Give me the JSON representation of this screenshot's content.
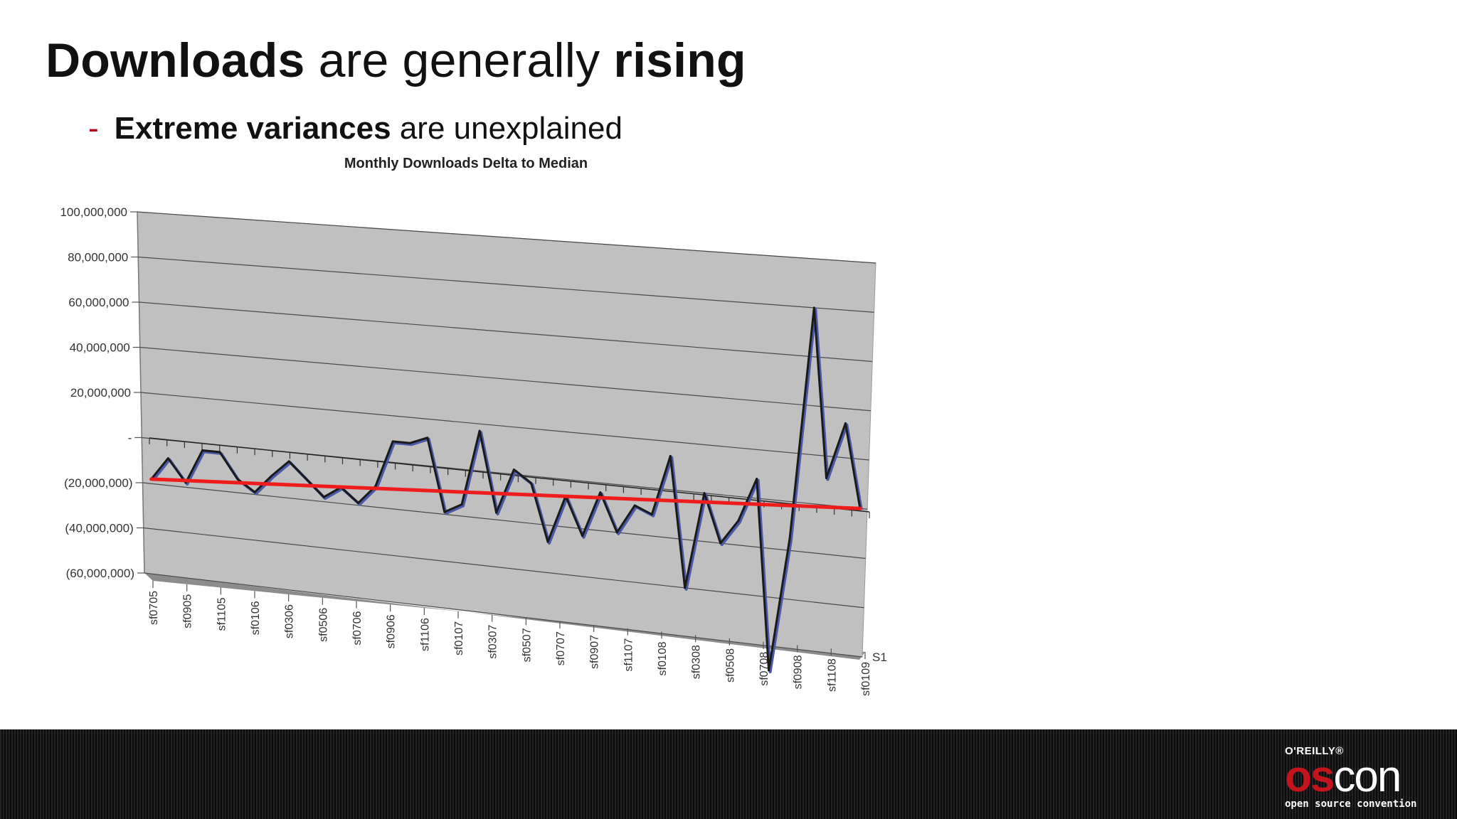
{
  "slide": {
    "title_bold_1": "Downloads",
    "title_mid": " are generally ",
    "title_bold_2": "rising",
    "bullet_dash": "-",
    "bullet_bold": "Extreme variances",
    "bullet_rest": " are unexplained"
  },
  "logo": {
    "publisher": "O'REILLY®",
    "word_os": "os",
    "word_con": "con",
    "tagline": "open source convention"
  },
  "colors": {
    "series_line": "#1a1a1a",
    "series_edge": "#4a5aa8",
    "trendline": "#ee1c1c",
    "plot_wall": "#c0c0c0",
    "accent": "#c4141d"
  },
  "chart_data": {
    "type": "line",
    "title": "Monthly Downloads Delta to Median",
    "style": "3d",
    "legend": "S1",
    "series": [
      {
        "name": "S1",
        "values": [
          -18000000,
          -8000000,
          -18000000,
          -3000000,
          -3000000,
          -14000000,
          -19000000,
          -11000000,
          -4000000,
          -11000000,
          -18000000,
          -13000000,
          -19000000,
          -11000000,
          9000000,
          9000000,
          12000000,
          -19000000,
          -15000000,
          17000000,
          -17000000,
          2000000,
          -3000000,
          -27000000,
          -7000000,
          -23000000,
          -4000000,
          -20000000,
          -8000000,
          -11000000,
          14000000,
          -40000000,
          0,
          -20000000,
          -10000000,
          8000000,
          -70000000,
          -15000000,
          80000000,
          11000000,
          34000000,
          0
        ]
      }
    ],
    "trendline": {
      "start": -18000000,
      "end": 0
    },
    "x_tick_labels": [
      "sf0705",
      "sf0905",
      "sf1105",
      "sf0106",
      "sf0306",
      "sf0506",
      "sf0706",
      "sf0906",
      "sf1106",
      "sf0107",
      "sf0307",
      "sf0507",
      "sf0707",
      "sf0907",
      "sf1107",
      "sf0108",
      "sf0308",
      "sf0508",
      "sf0708",
      "sf0908",
      "sf1108",
      "sf0109"
    ],
    "y_ticks": [
      100000000,
      80000000,
      60000000,
      40000000,
      20000000,
      0,
      -20000000,
      -40000000,
      -60000000
    ],
    "y_tick_labels": [
      "100,000,000",
      "80,000,000",
      "60,000,000",
      "40,000,000",
      "20,000,000",
      "-",
      "(20,000,000)",
      "(40,000,000)",
      "(60,000,000)"
    ],
    "ylim": [
      -60000000,
      100000000
    ],
    "grid": true
  }
}
